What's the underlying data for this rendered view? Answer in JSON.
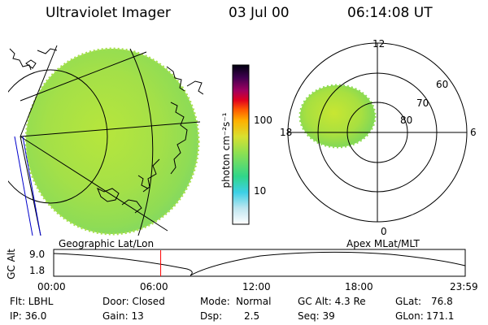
{
  "header": {
    "instrument": "Ultraviolet Imager",
    "date": "03 Jul 00",
    "time": "06:14:08 UT"
  },
  "colorbar": {
    "unit": "photon cm⁻²s⁻¹",
    "ticks": [
      "100",
      "10"
    ]
  },
  "polar_plot": {
    "mlt_labels": {
      "top": "12",
      "right": "6",
      "bottom": "0",
      "left": "18"
    },
    "lat_labels": [
      "60",
      "70",
      "80"
    ]
  },
  "timeline": {
    "left_title": "Geographic Lat/Lon",
    "right_title": "Apex MLat/MLT",
    "axis_label": "GC Alt",
    "y_ticks": [
      "9.0",
      "1.8"
    ],
    "x_ticks": [
      "00:00",
      "06:00",
      "12:00",
      "18:00",
      "23:59"
    ],
    "current_time_fraction": 0.26
  },
  "info": {
    "filter": "Flt: LBHL",
    "ip": "IP: 36.0",
    "door": "Door: Closed",
    "gain": "Gain: 13",
    "mode_label": "Mode:",
    "mode_value": "Normal",
    "dsp_label": "Dsp:",
    "dsp_value": "2.5",
    "gc_alt": "GC Alt: 4.3 Re",
    "seq": "Seq: 39",
    "glat_label": "GLat:",
    "glat_value": "76.8",
    "glon_label": "GLon:",
    "glon_value": "171.1"
  },
  "colors": {
    "accent_red": "#ff0000",
    "auroral_green": "#9fe040"
  }
}
